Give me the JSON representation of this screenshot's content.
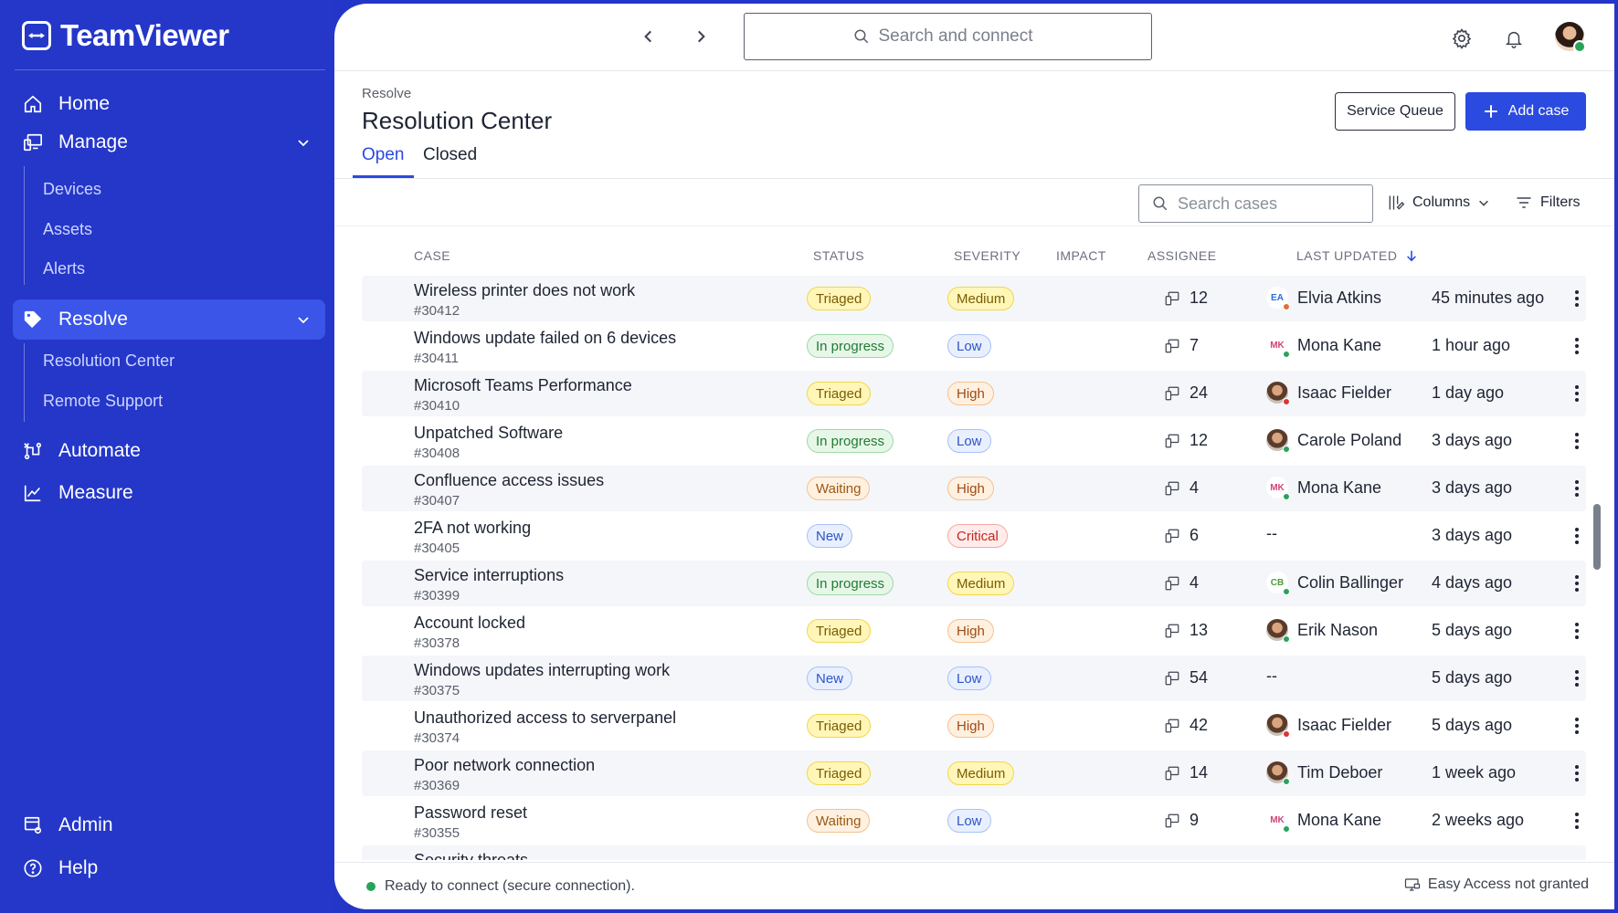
{
  "app": {
    "name": "TeamViewer"
  },
  "sidebar": {
    "home": "Home",
    "manage": "Manage",
    "manage_items": [
      "Devices",
      "Assets",
      "Alerts"
    ],
    "resolve": "Resolve",
    "resolve_items": [
      "Resolution Center",
      "Remote Support"
    ],
    "automate": "Automate",
    "measure": "Measure",
    "admin": "Admin",
    "help": "Help"
  },
  "topbar": {
    "search_placeholder": "Search and connect"
  },
  "page": {
    "breadcrumb": "Resolve",
    "title": "Resolution Center",
    "service_queue": "Service Queue",
    "add_case": "Add case",
    "tabs": [
      "Open",
      "Closed"
    ],
    "active_tab": "Open"
  },
  "toolbar": {
    "search_placeholder": "Search cases",
    "columns": "Columns",
    "filters": "Filters"
  },
  "table": {
    "headers": {
      "case": "CASE",
      "status": "STATUS",
      "severity": "SEVERITY",
      "impact": "IMPACT",
      "assignee": "ASSIGNEE",
      "last_updated": "LAST UPDATED"
    },
    "sort": {
      "column": "last_updated",
      "direction": "descending"
    },
    "rows": [
      {
        "title": "Wireless printer does not work",
        "id": "#30412",
        "status": "Triaged",
        "severity": "Medium",
        "impact": "12",
        "assignee": "Elvia Atkins",
        "initials": "EA",
        "updated": "45 minutes ago"
      },
      {
        "title": "Windows update failed on 6 devices",
        "id": "#30411",
        "status": "In progress",
        "severity": "Low",
        "impact": "7",
        "assignee": "Mona Kane",
        "initials": "MK",
        "updated": "1 hour ago"
      },
      {
        "title": "Microsoft Teams Performance",
        "id": "#30410",
        "status": "Triaged",
        "severity": "High",
        "impact": "24",
        "assignee": "Isaac Fielder",
        "initials": "",
        "updated": "1 day ago"
      },
      {
        "title": "Unpatched Software",
        "id": "#30408",
        "status": "In progress",
        "severity": "Low",
        "impact": "12",
        "assignee": "Carole Poland",
        "initials": "",
        "updated": "3 days ago"
      },
      {
        "title": "Confluence access issues",
        "id": "#30407",
        "status": "Waiting",
        "severity": "High",
        "impact": "4",
        "assignee": "Mona Kane",
        "initials": "MK",
        "updated": "3 days ago"
      },
      {
        "title": "2FA not working",
        "id": "#30405",
        "status": "New",
        "severity": "Critical",
        "impact": "6",
        "assignee": "--",
        "initials": null,
        "updated": "3 days ago"
      },
      {
        "title": "Service interruptions",
        "id": "#30399",
        "status": "In progress",
        "severity": "Medium",
        "impact": "4",
        "assignee": "Colin Ballinger",
        "initials": "CB",
        "updated": "4 days ago"
      },
      {
        "title": "Account locked",
        "id": "#30378",
        "status": "Triaged",
        "severity": "High",
        "impact": "13",
        "assignee": "Erik Nason",
        "initials": "",
        "updated": "5 days ago"
      },
      {
        "title": "Windows updates interrupting work",
        "id": "#30375",
        "status": "New",
        "severity": "Low",
        "impact": "54",
        "assignee": "--",
        "initials": null,
        "updated": "5 days ago"
      },
      {
        "title": "Unauthorized access to serverpanel",
        "id": "#30374",
        "status": "Triaged",
        "severity": "High",
        "impact": "42",
        "assignee": "Isaac Fielder",
        "initials": "",
        "updated": "5 days ago"
      },
      {
        "title": "Poor network connection",
        "id": "#30369",
        "status": "Triaged",
        "severity": "Medium",
        "impact": "14",
        "assignee": "Tim Deboer",
        "initials": "",
        "updated": "1 week ago"
      },
      {
        "title": "Password reset",
        "id": "#30355",
        "status": "Waiting",
        "severity": "Low",
        "impact": "9",
        "assignee": "Mona Kane",
        "initials": "MK",
        "updated": "2 weeks ago"
      },
      {
        "title": "Security threats",
        "id": "",
        "status": "",
        "severity": "",
        "impact": "",
        "assignee": "",
        "initials": null,
        "updated": ""
      }
    ]
  },
  "statusbar": {
    "left": "Ready to connect (secure connection).",
    "right": "Easy Access not granted"
  },
  "colors": {
    "accent": "#2b4ae0",
    "sidebar": "#2437c9",
    "sidebar_active": "#3a55e8",
    "online": "#29a35a"
  }
}
